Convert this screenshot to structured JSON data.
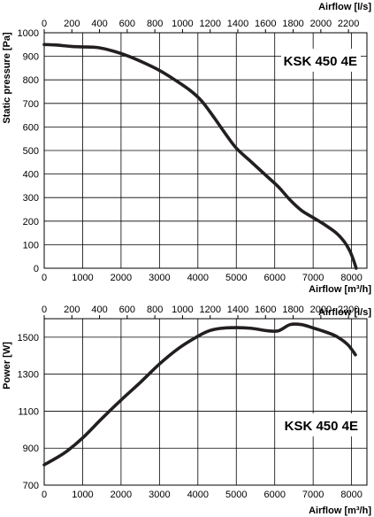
{
  "chart_data": [
    {
      "type": "line",
      "title": "",
      "model_label": "KSK 450 4E",
      "xlabel": "Airflow [m³/h]",
      "x2label": "Airflow [l/s]",
      "ylabel": "Static pressure [Pa]",
      "xlim": [
        0,
        8400
      ],
      "ylim": [
        0,
        1000
      ],
      "x2lim": [
        0,
        2333.33
      ],
      "x_ticks": [
        0,
        1000,
        2000,
        3000,
        4000,
        5000,
        6000,
        7000,
        8000
      ],
      "x2_ticks": [
        0,
        200,
        400,
        600,
        800,
        1000,
        1200,
        1400,
        1600,
        1800,
        2000,
        2200
      ],
      "y_ticks": [
        0,
        100,
        200,
        300,
        400,
        500,
        600,
        700,
        800,
        900,
        1000
      ],
      "grid": true,
      "series": [
        {
          "x": [
            0,
            300,
            700,
            1000,
            1400,
            1800,
            2200,
            2600,
            3000,
            3400,
            3800,
            4100,
            4400,
            4700,
            5000,
            5400,
            5800,
            6100,
            6400,
            6700,
            7000,
            7300,
            7600,
            7800,
            7950,
            8050,
            8120
          ],
          "y": [
            950,
            948,
            942,
            940,
            937,
            922,
            900,
            872,
            840,
            800,
            755,
            710,
            645,
            575,
            510,
            450,
            390,
            345,
            290,
            245,
            215,
            185,
            150,
            115,
            75,
            35,
            0
          ]
        }
      ]
    },
    {
      "type": "line",
      "title": "",
      "model_label": "KSK 450 4E",
      "xlabel": "Airflow [m³/h]",
      "x2label": "Airflow [l/s]",
      "ylabel": "Power [W]",
      "xlim": [
        0,
        8400
      ],
      "ylim": [
        700,
        1600
      ],
      "x2lim": [
        0,
        2333.33
      ],
      "x_ticks": [
        0,
        1000,
        2000,
        3000,
        4000,
        5000,
        6000,
        7000,
        8000
      ],
      "x2_ticks": [
        0,
        200,
        400,
        600,
        800,
        1000,
        1200,
        1400,
        1600,
        1800,
        2000,
        2200
      ],
      "y_ticks": [
        700,
        900,
        1100,
        1300,
        1500
      ],
      "grid": true,
      "series": [
        {
          "x": [
            0,
            300,
            600,
            1000,
            1500,
            2000,
            2500,
            3000,
            3500,
            4000,
            4300,
            4600,
            5000,
            5400,
            5800,
            6100,
            6400,
            6700,
            7000,
            7300,
            7600,
            7900,
            8100
          ],
          "y": [
            810,
            845,
            885,
            955,
            1060,
            1160,
            1255,
            1355,
            1440,
            1505,
            1535,
            1548,
            1552,
            1548,
            1535,
            1535,
            1568,
            1568,
            1550,
            1530,
            1505,
            1460,
            1405
          ]
        }
      ]
    }
  ]
}
